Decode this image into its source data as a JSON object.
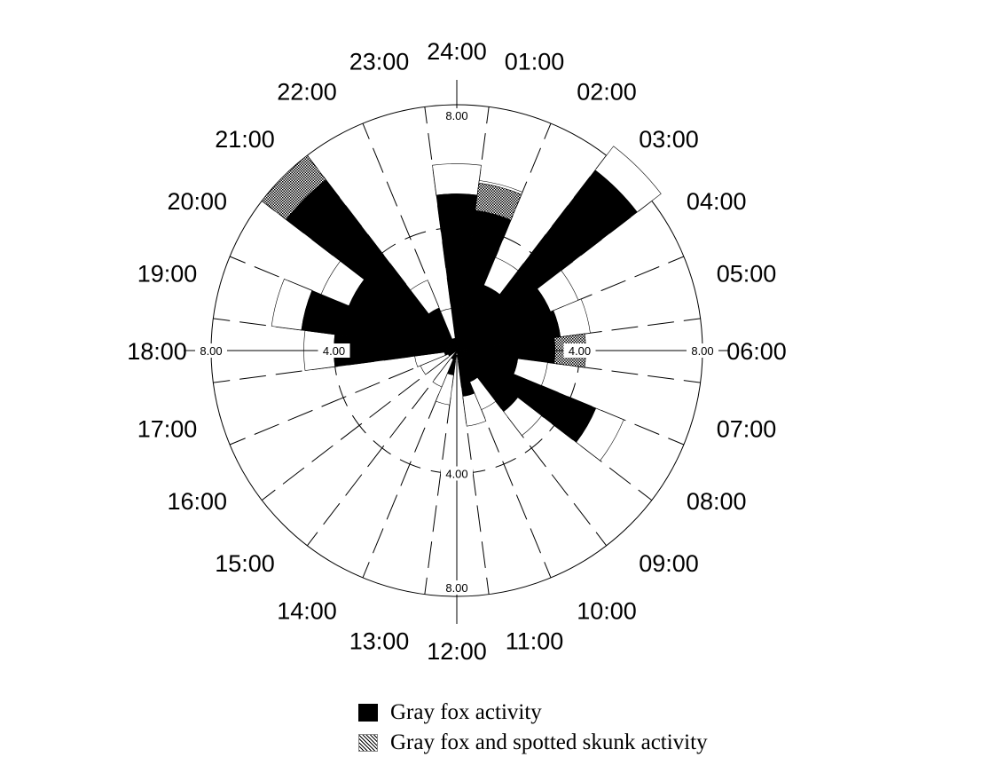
{
  "chart_data": {
    "type": "polar-bar",
    "title": "",
    "r_max": 8,
    "radial_tick_labels": [
      "4.00",
      "8.00"
    ],
    "hour_labels": [
      "24:00",
      "01:00",
      "02:00",
      "03:00",
      "04:00",
      "05:00",
      "06:00",
      "07:00",
      "08:00",
      "09:00",
      "10:00",
      "11:00",
      "12:00",
      "13:00",
      "14:00",
      "15:00",
      "16:00",
      "17:00",
      "18:00",
      "19:00",
      "20:00",
      "21:00",
      "22:00",
      "23:00"
    ],
    "series": [
      {
        "name": "Gray fox activity",
        "color": "#000000",
        "values": [
          5.1,
          4.6,
          2.3,
          7.4,
          3.3,
          3.4,
          3.2,
          2.0,
          4.9,
          2.5,
          1.1,
          1.5,
          0.0,
          0.8,
          0.3,
          0.0,
          0.3,
          0.4,
          4.0,
          5.1,
          3.8,
          7.0,
          1.5,
          0.4
        ]
      },
      {
        "name": "Gray fox and spotted skunk activity",
        "color": "hatched",
        "values": [
          0.0,
          0.9,
          0.0,
          0.0,
          0.0,
          0.0,
          1.0,
          0.0,
          0.0,
          0.0,
          0.0,
          0.0,
          0.0,
          0.0,
          0.0,
          0.0,
          0.0,
          0.0,
          0.0,
          0.0,
          0.0,
          1.0,
          0.0,
          0.0
        ]
      }
    ],
    "legend": {
      "position": "bottom",
      "items": [
        "Gray fox activity",
        "Gray fox and spotted skunk activity"
      ]
    }
  }
}
